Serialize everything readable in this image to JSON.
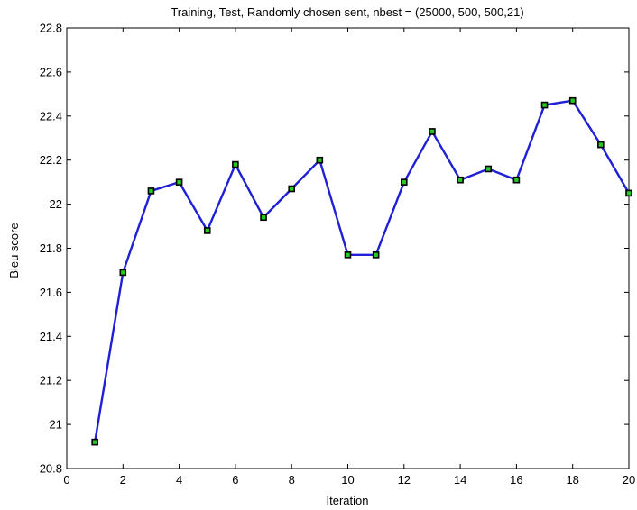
{
  "chart_data": {
    "type": "line",
    "title": "Training, Test, Randomly chosen sent, nbest = (25000, 500, 500,21)",
    "xlabel": "Iteration",
    "ylabel": "Bleu score",
    "xlim": [
      0,
      20
    ],
    "ylim": [
      20.8,
      22.8
    ],
    "xticks": [
      0,
      2,
      4,
      6,
      8,
      10,
      12,
      14,
      16,
      18,
      20
    ],
    "yticks": [
      20.8,
      21,
      21.2,
      21.4,
      21.6,
      21.8,
      22,
      22.2,
      22.4,
      22.6,
      22.8
    ],
    "xtick_labels": [
      "0",
      "2",
      "4",
      "6",
      "8",
      "10",
      "12",
      "14",
      "16",
      "18",
      "20"
    ],
    "ytick_labels": [
      "20.8",
      "21",
      "21.2",
      "21.4",
      "21.6",
      "21.8",
      "22",
      "22.2",
      "22.4",
      "22.6",
      "22.8"
    ],
    "grid": false,
    "series": [
      {
        "line_color": "#1f1fd6",
        "marker": "square",
        "marker_edge_color": "#000000",
        "marker_face_color": "#22cc22",
        "x": [
          1,
          2,
          3,
          4,
          5,
          6,
          7,
          8,
          9,
          10,
          11,
          12,
          13,
          14,
          15,
          16,
          17,
          18,
          19,
          20
        ],
        "y": [
          20.92,
          21.69,
          22.06,
          22.1,
          21.88,
          22.18,
          21.94,
          22.07,
          22.2,
          21.77,
          21.77,
          22.1,
          22.33,
          22.11,
          22.16,
          22.11,
          22.45,
          22.47,
          22.27,
          22.05
        ]
      }
    ]
  }
}
